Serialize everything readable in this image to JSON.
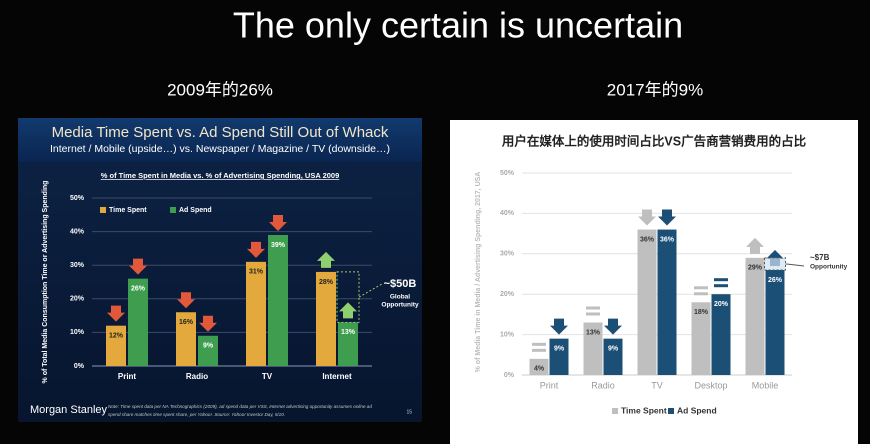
{
  "slide": {
    "title": "The only certain is uncertain",
    "captions": [
      "2009年的26%",
      "2017年的9%"
    ]
  },
  "chart_data": [
    {
      "type": "bar",
      "title": "Media Time Spent vs. Ad Spend Still Out of Whack",
      "subtitle": "Internet / Mobile (upside…) vs. Newspaper / Magazine / TV (downside…)",
      "inner_title": "% of Time Spent in Media vs. % of Advertising Spending, USA 2009",
      "ylabel": "% of Total Media Consumption Time or Advertising Spending",
      "categories": [
        "Print",
        "Radio",
        "TV",
        "Internet"
      ],
      "series": [
        {
          "name": "Time Spent",
          "color": "#e3a93c",
          "values": [
            12,
            16,
            31,
            28
          ],
          "value_labels": [
            "12%",
            "16%",
            "31%",
            "28%"
          ],
          "markers": [
            "down",
            "down",
            "down",
            "up"
          ]
        },
        {
          "name": "Ad Spend",
          "color": "#3f9d4f",
          "values": [
            26,
            9,
            39,
            13
          ],
          "value_labels": [
            "26%",
            "9%",
            "39%",
            "13%"
          ],
          "markers": [
            "down",
            "down",
            "down",
            "up"
          ]
        }
      ],
      "marker_colors": {
        "down": "#e2583a",
        "up": "#8fcf6e"
      },
      "ylim": [
        0,
        50
      ],
      "yticks": [
        {
          "value": 0,
          "label": "0%"
        },
        {
          "value": 10,
          "label": "10%"
        },
        {
          "value": 20,
          "label": "20%"
        },
        {
          "value": 30,
          "label": "30%"
        },
        {
          "value": 40,
          "label": "40%"
        },
        {
          "value": 50,
          "label": "50%"
        }
      ],
      "grid": true,
      "legend": "upper left",
      "annotation_lines": [
        "~$50B",
        "Global",
        "Opportunity"
      ],
      "footer": "Morgan Stanley",
      "note_lines": [
        "Note: Time spent data per NA Technographics (2009), ad spend data per VSS, Internet advertising opportunity assumes online ad",
        "spend share matches time spent share, per Yahoo!. Source: Yahoo! Investor Day, 5/10."
      ],
      "page": "15"
    },
    {
      "type": "bar",
      "title": "用户在媒体上的使用时间占比VS广告商营销费用的占比",
      "ylabel": "% of Media Time in Media / Advertising Spending, 2017, USA",
      "categories": [
        "Print",
        "Radio",
        "TV",
        "Desktop",
        "Mobile"
      ],
      "series": [
        {
          "name": "Time Spent",
          "color": "#bfbfbf",
          "values": [
            4,
            13,
            36,
            18,
            29
          ],
          "value_labels": [
            "4%",
            "13%",
            "36%",
            "18%",
            "29%"
          ],
          "markers": [
            "equal",
            "equal",
            "down",
            "equal",
            "up"
          ]
        },
        {
          "name": "Ad Spend",
          "color": "#1b4f76",
          "values": [
            9,
            9,
            36,
            20,
            26
          ],
          "value_labels": [
            "9%",
            "9%",
            "36%",
            "20%",
            "26%"
          ],
          "markers": [
            "down",
            "down",
            "down",
            "equal",
            "up"
          ]
        }
      ],
      "ylim": [
        0,
        50
      ],
      "yticks": [
        {
          "value": 0,
          "label": "0%"
        },
        {
          "value": 10,
          "label": "10%"
        },
        {
          "value": 20,
          "label": "20%"
        },
        {
          "value": 30,
          "label": "30%"
        },
        {
          "value": 40,
          "label": "40%"
        },
        {
          "value": 50,
          "label": "50%"
        }
      ],
      "grid": true,
      "legend": "lower center",
      "annotation_lines": [
        "~$7B",
        "Opportunity"
      ]
    }
  ]
}
